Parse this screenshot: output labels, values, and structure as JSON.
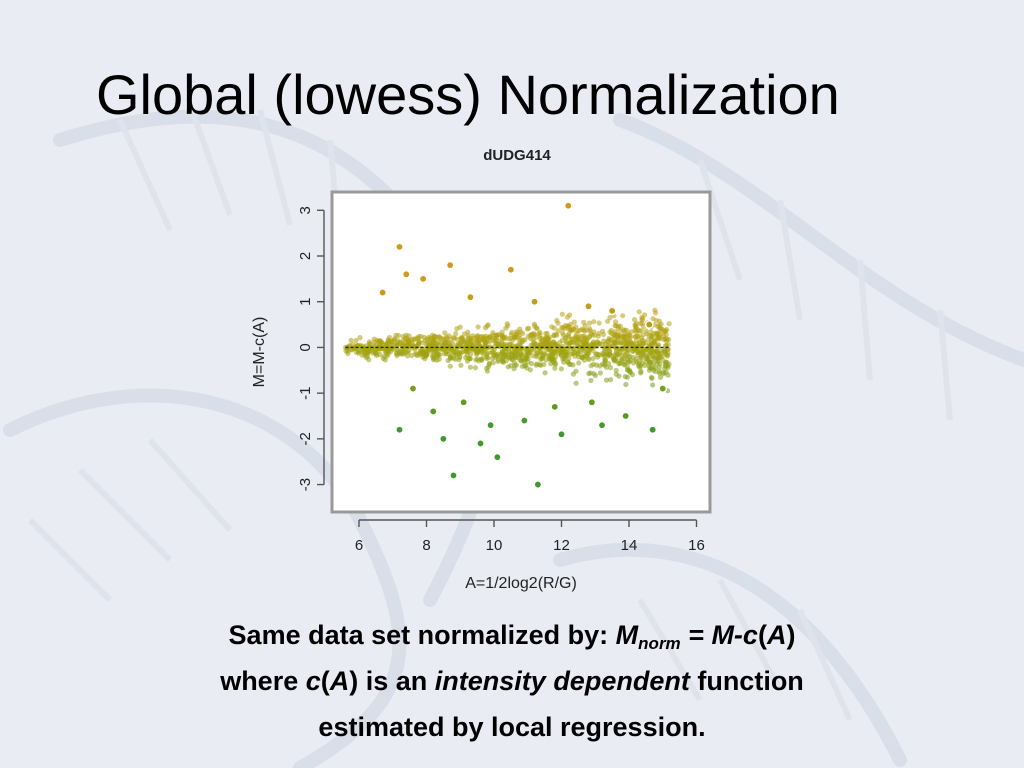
{
  "slide": {
    "title": "Global (lowess) Normalization",
    "caption": {
      "line1_lead": "Same data set normalized by: ",
      "line1_m": "M",
      "line1_sub": "norm",
      "line1_eq": " = M-c",
      "line1_open": "(",
      "line1_a": "A",
      "line1_close": ")",
      "line2_lead": "where ",
      "line2_c": "c",
      "line2_open": "(",
      "line2_a": "A",
      "line2_mid": ") is an ",
      "line2_emph": "intensity dependent",
      "line2_tail": " function",
      "line3": "estimated by local regression."
    }
  },
  "colors": {
    "background": "#e9edf3",
    "frame": "#9a9a9a",
    "point_high": "#d39a1a",
    "point_mid": "#a7a410",
    "point_low": "#3e9a2a",
    "point_outlier": "#a86838",
    "fit_line": "#222222"
  },
  "chart_data": {
    "type": "scatter",
    "title": "dUDG414",
    "xlabel": "A=1/2log2(R/G)",
    "ylabel": "M=M-c(A)",
    "xlim": [
      5.2,
      16.4
    ],
    "ylim": [
      -3.6,
      3.4
    ],
    "xticks": [
      "6",
      "8",
      "10",
      "12",
      "14",
      "16"
    ],
    "yticks": [
      "-3",
      "-2",
      "-1",
      "0",
      "1",
      "2",
      "3"
    ],
    "grid": false,
    "fit_line": {
      "label": "lowess",
      "x": [
        5.6,
        15.2
      ],
      "y": [
        0,
        0
      ]
    },
    "points": [
      [
        12.2,
        3.1
      ],
      [
        7.2,
        2.2
      ],
      [
        8.7,
        1.8
      ],
      [
        10.5,
        1.7
      ],
      [
        7.4,
        1.6
      ],
      [
        7.9,
        1.5
      ],
      [
        6.7,
        1.2
      ],
      [
        9.3,
        1.1
      ],
      [
        11.2,
        1.0
      ],
      [
        12.8,
        0.9
      ],
      [
        13.5,
        0.8
      ],
      [
        14.6,
        0.5
      ],
      [
        7.6,
        -0.9
      ],
      [
        9.1,
        -1.2
      ],
      [
        10.9,
        -1.6
      ],
      [
        13.2,
        -1.7
      ],
      [
        12.0,
        -1.9
      ],
      [
        14.7,
        -1.8
      ],
      [
        9.6,
        -2.1
      ],
      [
        8.5,
        -2.0
      ],
      [
        8.8,
        -2.8
      ],
      [
        11.3,
        -3.0
      ],
      [
        7.2,
        -1.8
      ],
      [
        10.1,
        -2.4
      ],
      [
        13.9,
        -1.5
      ],
      [
        15.0,
        -0.9
      ],
      [
        11.8,
        -1.3
      ],
      [
        12.9,
        -1.2
      ],
      [
        9.9,
        -1.7
      ],
      [
        8.2,
        -1.4
      ]
    ]
  }
}
